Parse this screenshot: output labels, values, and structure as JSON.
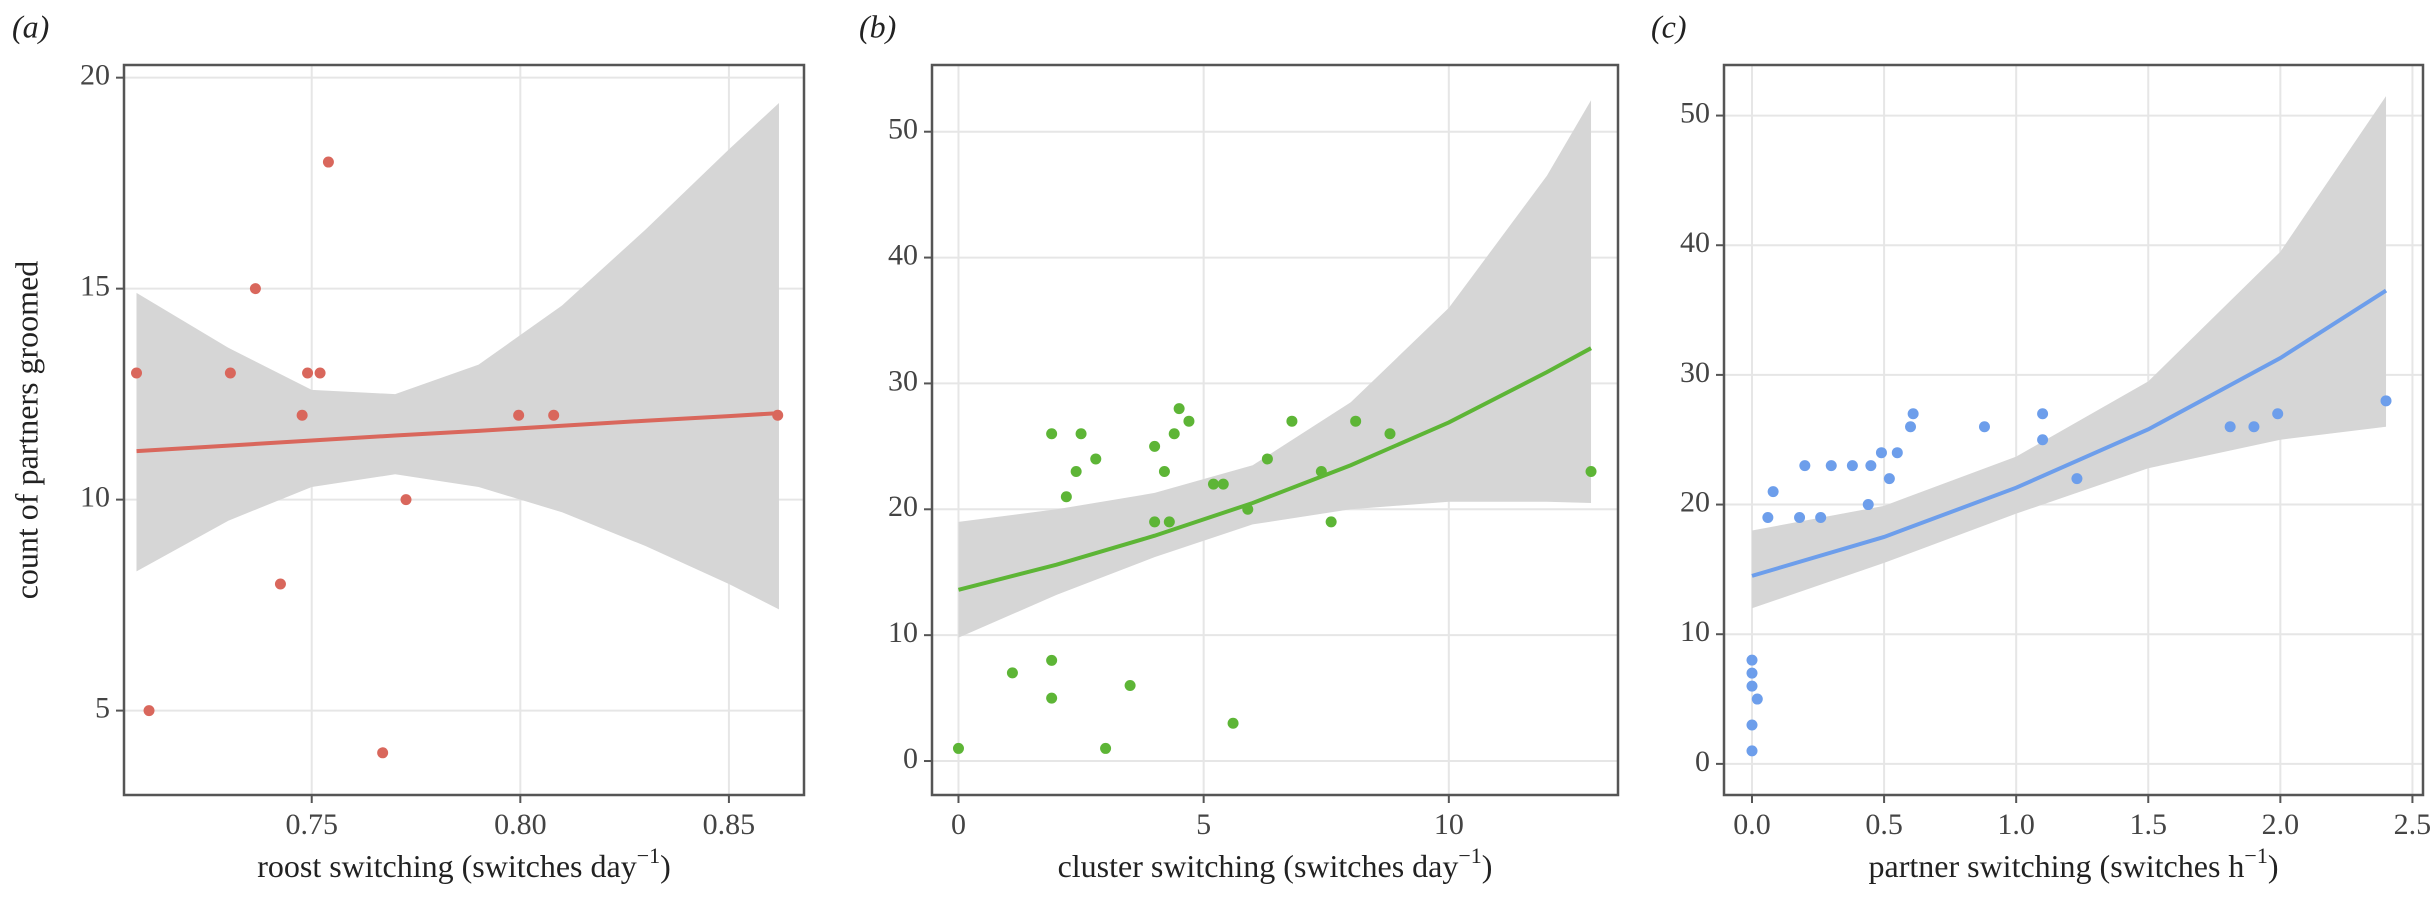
{
  "chart_data": [
    {
      "type": "scatter",
      "panel_label": "(a)",
      "ylabel": "count of partners groomed",
      "xlabel_parts": [
        "roost switching (switches day",
        "−1",
        ")"
      ],
      "xlim": [
        0.705,
        0.868
      ],
      "ylim": [
        3,
        20.3
      ],
      "xticks": [
        0.75,
        {
          "value": 0.8,
          "label": "0.80"
        },
        0.85
      ],
      "yticks": [
        5,
        10,
        15,
        20
      ],
      "grid": true,
      "color": "#d9675c",
      "x": [
        0.708,
        0.711,
        0.7305,
        0.7365,
        0.7425,
        0.7477,
        0.749,
        0.752,
        0.754,
        0.767,
        0.7726,
        0.7996,
        0.808,
        0.8617
      ],
      "values": [
        13,
        5,
        13,
        15,
        8,
        12,
        13,
        13,
        18,
        4,
        10,
        12,
        12,
        12
      ],
      "fit": {
        "color": "#d9675c",
        "band_color": "#d6d6d6",
        "x": [
          0.708,
          0.73,
          0.75,
          0.77,
          0.79,
          0.81,
          0.83,
          0.85,
          0.862
        ],
        "values": [
          11.15,
          11.28,
          11.4,
          11.52,
          11.63,
          11.75,
          11.87,
          11.98,
          12.05
        ],
        "lower": [
          8.3,
          9.5,
          10.3,
          10.6,
          10.3,
          9.7,
          8.9,
          8.0,
          7.4
        ],
        "upper": [
          14.9,
          13.6,
          12.6,
          12.5,
          13.2,
          14.6,
          16.4,
          18.3,
          19.4
        ]
      }
    },
    {
      "type": "scatter",
      "panel_label": "(b)",
      "xlabel_parts": [
        "cluster switching (switches day",
        "−1",
        ")"
      ],
      "xlim": [
        -0.54,
        13.45
      ],
      "ylim": [
        -2.7,
        55.3
      ],
      "xticks": [
        0,
        5,
        10
      ],
      "yticks": [
        0,
        10,
        20,
        30,
        40,
        50
      ],
      "grid": true,
      "color": "#5db536",
      "x": [
        0,
        1.1,
        1.9,
        1.9,
        1.9,
        2.2,
        2.4,
        2.5,
        2.8,
        3.0,
        3.5,
        4.0,
        4.0,
        4.2,
        4.3,
        4.4,
        4.5,
        4.7,
        5.6,
        5.2,
        5.4,
        5.9,
        6.3,
        6.8,
        7.4,
        7.6,
        8.1,
        8.8,
        12.9
      ],
      "values": [
        1,
        7,
        8,
        5,
        26,
        21,
        23,
        26,
        24,
        1,
        6,
        25,
        19,
        23,
        19,
        26,
        28,
        27,
        3,
        22,
        22,
        20,
        24,
        27,
        23,
        19,
        27,
        26,
        23
      ],
      "fit": {
        "color": "#5db536",
        "band_color": "#d6d6d6",
        "x": [
          0,
          2,
          4,
          6,
          8,
          10,
          12,
          12.9
        ],
        "values": [
          13.6,
          15.6,
          17.9,
          20.5,
          23.5,
          26.9,
          30.9,
          32.8
        ],
        "lower": [
          9.8,
          13.2,
          16.2,
          18.8,
          20.0,
          20.6,
          20.6,
          20.5
        ],
        "upper": [
          19.0,
          20.0,
          21.3,
          23.5,
          28.5,
          36.0,
          46.5,
          52.5
        ]
      }
    },
    {
      "type": "scatter",
      "panel_label": "(c)",
      "xlabel_parts": [
        "partner switching (switches h",
        "−1",
        ")"
      ],
      "xlim": [
        -0.106,
        2.54
      ],
      "ylim": [
        -2.4,
        53.9
      ],
      "xticks": [
        {
          "value": 0,
          "label": "0.0"
        },
        0.5,
        {
          "value": 1,
          "label": "1.0"
        },
        1.5,
        {
          "value": 2,
          "label": "2.0"
        },
        2.5
      ],
      "yticks": [
        0,
        10,
        20,
        30,
        40,
        50
      ],
      "grid": true,
      "color": "#6d9eeb",
      "x": [
        0,
        0,
        0,
        0.02,
        0,
        0,
        0.06,
        0.08,
        0.18,
        0.2,
        0.26,
        0.3,
        0.38,
        0.44,
        0.45,
        0.49,
        0.52,
        0.55,
        0.6,
        0.61,
        0.88,
        1.1,
        1.1,
        1.23,
        1.81,
        1.9,
        1.99,
        2.4
      ],
      "values": [
        8,
        7,
        6,
        5,
        3,
        1,
        19,
        21,
        19,
        23,
        19,
        23,
        23,
        20,
        23,
        24,
        22,
        24,
        26,
        27,
        26,
        27,
        25,
        22,
        26,
        26,
        27,
        28
      ],
      "fit": {
        "color": "#6d9eeb",
        "band_color": "#d6d6d6",
        "x": [
          0,
          0.5,
          1,
          1.5,
          2,
          2.4
        ],
        "values": [
          14.5,
          17.5,
          21.3,
          25.8,
          31.3,
          36.5
        ],
        "lower": [
          12.0,
          15.5,
          19.3,
          22.8,
          25.0,
          26.0
        ],
        "upper": [
          18.0,
          19.9,
          23.7,
          29.5,
          39.5,
          51.5
        ]
      }
    }
  ]
}
